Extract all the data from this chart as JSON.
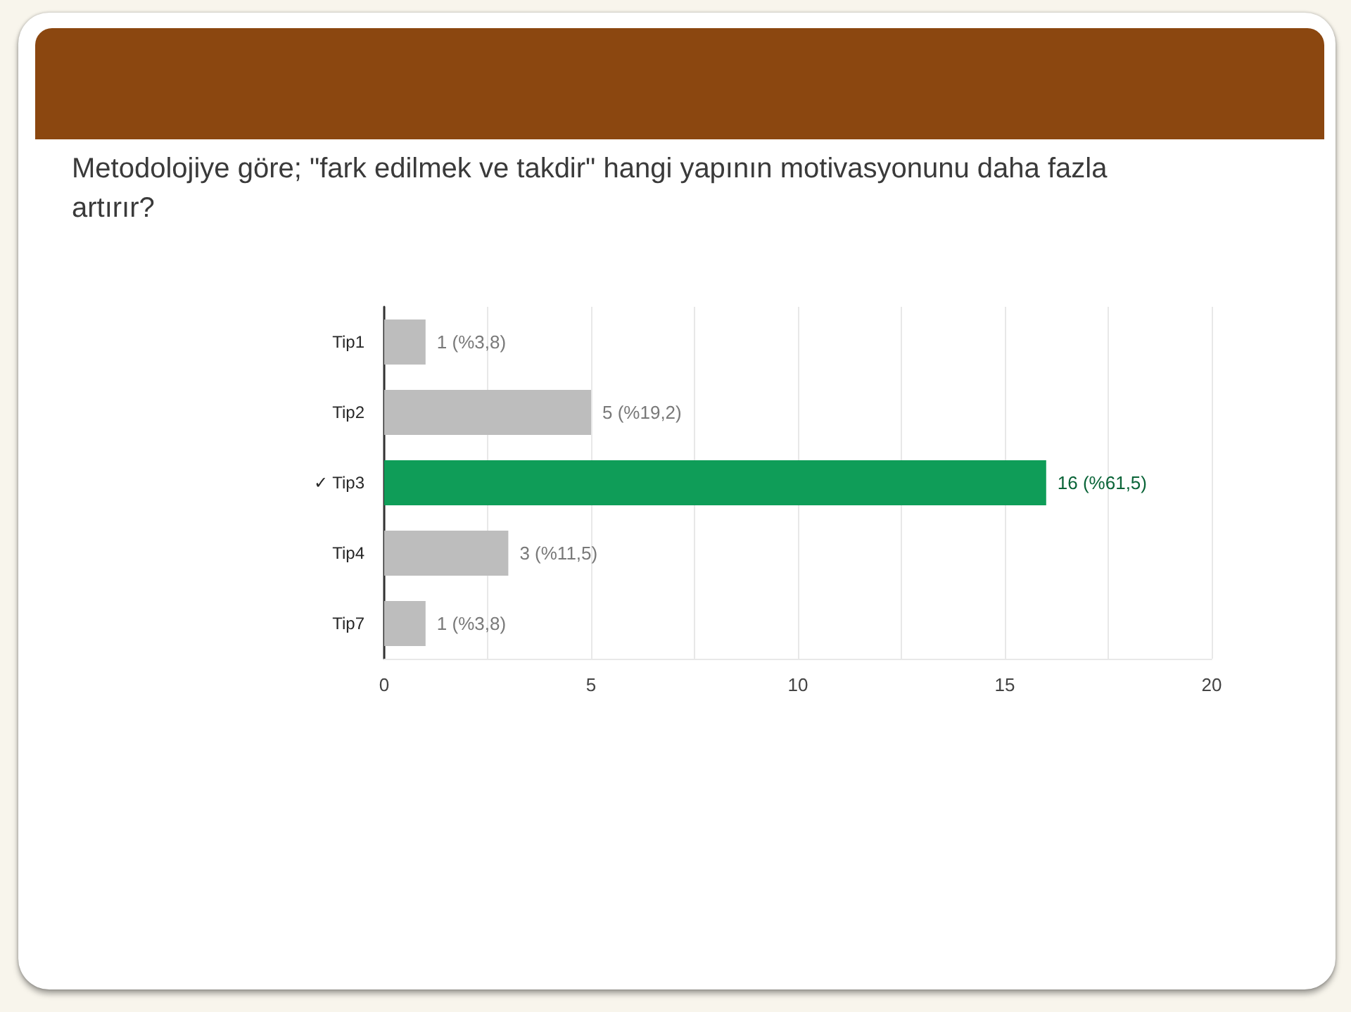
{
  "chart_data": {
    "type": "bar",
    "orientation": "horizontal",
    "title": "Metodolojiye göre; \"fark edilmek ve takdir\" hangi yapının motivasyonunu daha fazla artırır?",
    "categories": [
      "Tip1",
      "Tip2",
      "✓ Tip3",
      "Tip4",
      "Tip7"
    ],
    "values": [
      1,
      5,
      16,
      3,
      1
    ],
    "colors": [
      "#bdbdbd",
      "#bdbdbd",
      "#0f9d58",
      "#bdbdbd",
      "#bdbdbd"
    ],
    "value_labels": [
      "1 (%3,8)",
      "5 (%19,2)",
      "16 (%61,5)",
      "3 (%11,5)",
      "1 (%3,8)"
    ],
    "xlim": [
      0,
      20
    ],
    "xticks": [
      0,
      {
        "value": 2.5,
        "label": null
      },
      5,
      {
        "value": 7.5,
        "label": null
      },
      10,
      {
        "value": 12.5,
        "label": null
      },
      15,
      {
        "value": 17.5,
        "label": null
      },
      20
    ],
    "grid": "x"
  }
}
